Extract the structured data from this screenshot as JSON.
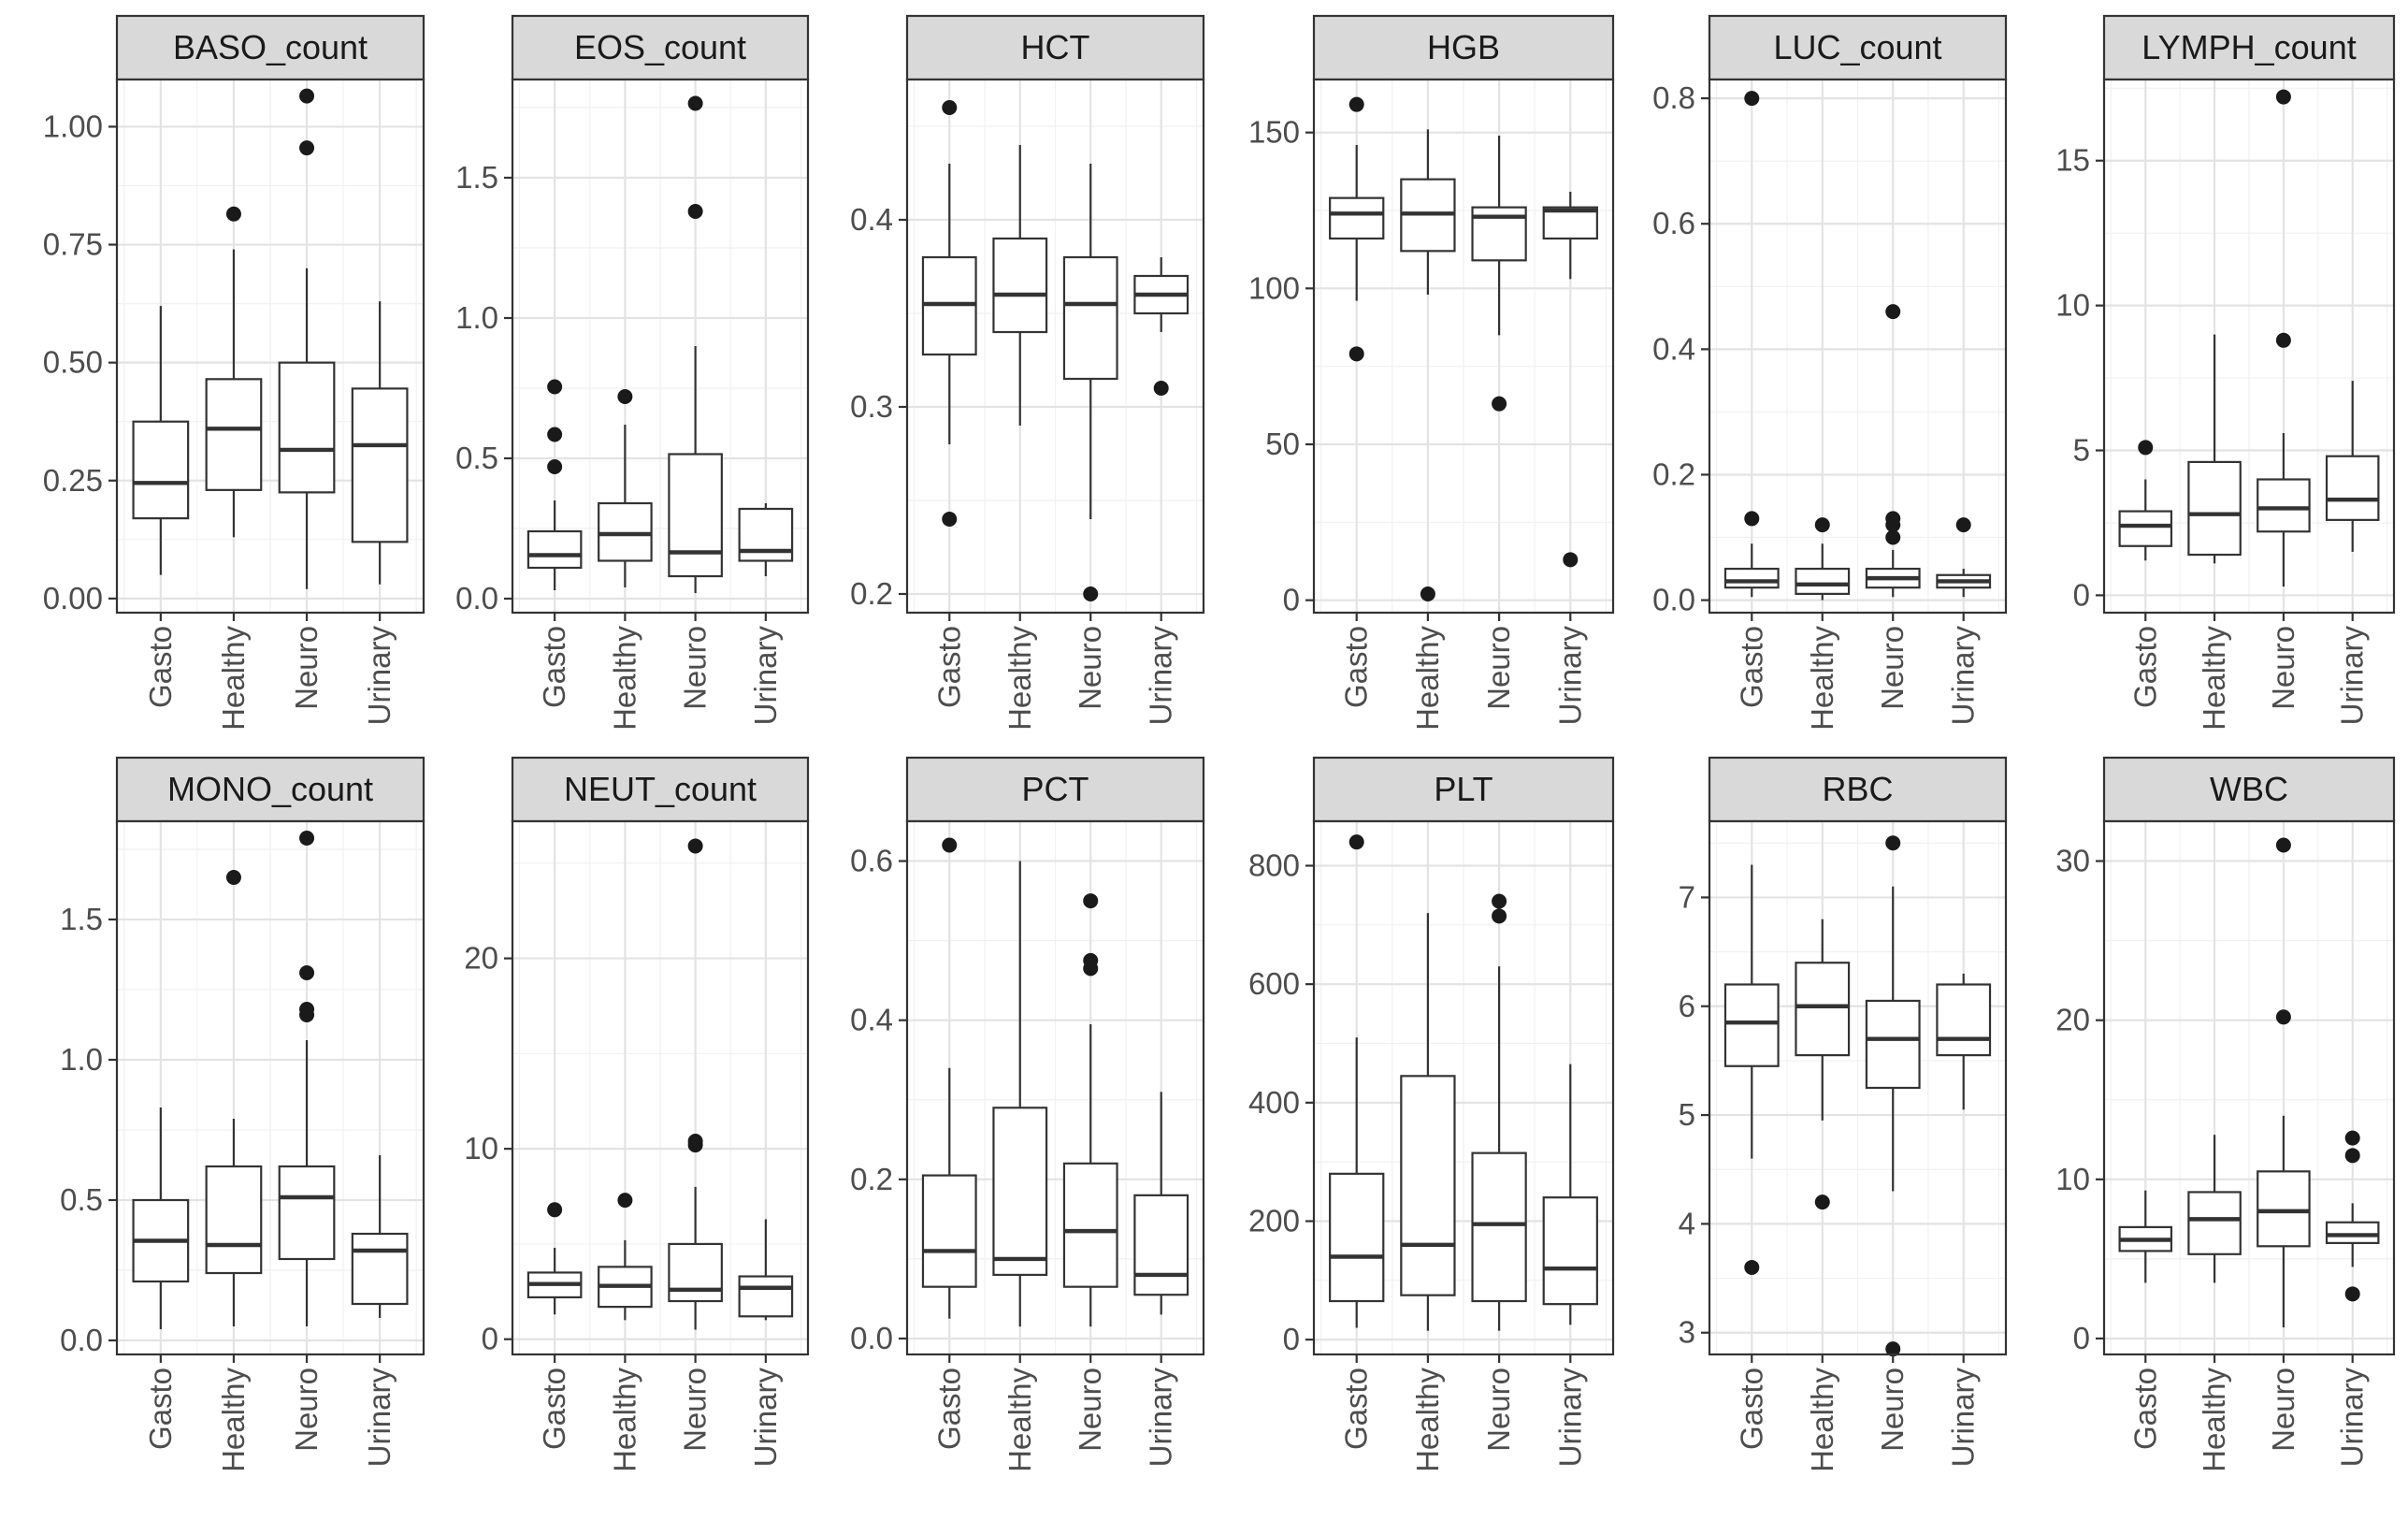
{
  "chart_data": [
    {
      "type": "box",
      "title": "BASO_count",
      "categories": [
        "Gasto",
        "Healthy",
        "Neuro",
        "Urinary"
      ],
      "ylim": [
        -0.03,
        1.1
      ],
      "yticks": [
        0.0,
        0.25,
        0.5,
        0.75,
        1.0
      ],
      "ytick_labels": [
        "0.00",
        "0.25",
        "0.50",
        "0.75",
        "1.00"
      ],
      "boxes": [
        {
          "min": 0.05,
          "q1": 0.17,
          "median": 0.245,
          "q3": 0.375,
          "max": 0.62,
          "outliers": []
        },
        {
          "min": 0.13,
          "q1": 0.23,
          "median": 0.36,
          "q3": 0.465,
          "max": 0.74,
          "outliers": [
            0.815
          ]
        },
        {
          "min": 0.02,
          "q1": 0.225,
          "median": 0.315,
          "q3": 0.5,
          "max": 0.7,
          "outliers": [
            0.955,
            1.065
          ]
        },
        {
          "min": 0.03,
          "q1": 0.12,
          "median": 0.325,
          "q3": 0.445,
          "max": 0.63,
          "outliers": []
        }
      ]
    },
    {
      "type": "box",
      "title": "EOS_count",
      "categories": [
        "Gasto",
        "Healthy",
        "Neuro",
        "Urinary"
      ],
      "ylim": [
        -0.05,
        1.85
      ],
      "yticks": [
        0.0,
        0.5,
        1.0,
        1.5
      ],
      "ytick_labels": [
        "0.0",
        "0.5",
        "1.0",
        "1.5"
      ],
      "boxes": [
        {
          "min": 0.03,
          "q1": 0.11,
          "median": 0.155,
          "q3": 0.24,
          "max": 0.35,
          "outliers": [
            0.47,
            0.585,
            0.755
          ]
        },
        {
          "min": 0.04,
          "q1": 0.135,
          "median": 0.23,
          "q3": 0.34,
          "max": 0.62,
          "outliers": [
            0.72
          ]
        },
        {
          "min": 0.02,
          "q1": 0.08,
          "median": 0.165,
          "q3": 0.515,
          "max": 0.9,
          "outliers": [
            1.38,
            1.765
          ]
        },
        {
          "min": 0.08,
          "q1": 0.135,
          "median": 0.17,
          "q3": 0.32,
          "max": 0.34,
          "outliers": []
        }
      ]
    },
    {
      "type": "box",
      "title": "HCT",
      "categories": [
        "Gasto",
        "Healthy",
        "Neuro",
        "Urinary"
      ],
      "ylim": [
        0.19,
        0.475
      ],
      "yticks": [
        0.2,
        0.3,
        0.4
      ],
      "ytick_labels": [
        "0.2",
        "0.3",
        "0.4"
      ],
      "boxes": [
        {
          "min": 0.28,
          "q1": 0.328,
          "median": 0.355,
          "q3": 0.38,
          "max": 0.43,
          "outliers": [
            0.24,
            0.46
          ]
        },
        {
          "min": 0.29,
          "q1": 0.34,
          "median": 0.36,
          "q3": 0.39,
          "max": 0.44,
          "outliers": []
        },
        {
          "min": 0.24,
          "q1": 0.315,
          "median": 0.355,
          "q3": 0.38,
          "max": 0.43,
          "outliers": [
            0.2
          ]
        },
        {
          "min": 0.34,
          "q1": 0.35,
          "median": 0.36,
          "q3": 0.37,
          "max": 0.38,
          "outliers": [
            0.31
          ]
        }
      ]
    },
    {
      "type": "box",
      "title": "HGB",
      "categories": [
        "Gasto",
        "Healthy",
        "Neuro",
        "Urinary"
      ],
      "ylim": [
        -4,
        167
      ],
      "yticks": [
        0,
        50,
        100,
        150
      ],
      "ytick_labels": [
        "0",
        "50",
        "100",
        "150"
      ],
      "boxes": [
        {
          "min": 96,
          "q1": 116,
          "median": 124,
          "q3": 129,
          "max": 146,
          "outliers": [
            79,
            159
          ]
        },
        {
          "min": 98,
          "q1": 112,
          "median": 124,
          "q3": 135,
          "max": 151,
          "outliers": [
            2
          ]
        },
        {
          "min": 85,
          "q1": 109,
          "median": 123,
          "q3": 126,
          "max": 149,
          "outliers": [
            63
          ]
        },
        {
          "min": 103,
          "q1": 116,
          "median": 125,
          "q3": 126,
          "max": 131,
          "outliers": [
            13
          ]
        }
      ]
    },
    {
      "type": "box",
      "title": "LUC_count",
      "categories": [
        "Gasto",
        "Healthy",
        "Neuro",
        "Urinary"
      ],
      "ylim": [
        -0.02,
        0.83
      ],
      "yticks": [
        0.0,
        0.2,
        0.4,
        0.6,
        0.8
      ],
      "ytick_labels": [
        "0.0",
        "0.2",
        "0.4",
        "0.6",
        "0.8"
      ],
      "boxes": [
        {
          "min": 0.005,
          "q1": 0.02,
          "median": 0.03,
          "q3": 0.05,
          "max": 0.09,
          "outliers": [
            0.13,
            0.8
          ]
        },
        {
          "min": 0.0,
          "q1": 0.01,
          "median": 0.025,
          "q3": 0.05,
          "max": 0.09,
          "outliers": [
            0.12
          ]
        },
        {
          "min": 0.005,
          "q1": 0.02,
          "median": 0.035,
          "q3": 0.05,
          "max": 0.08,
          "outliers": [
            0.1,
            0.12,
            0.13,
            0.46
          ]
        },
        {
          "min": 0.005,
          "q1": 0.02,
          "median": 0.03,
          "q3": 0.04,
          "max": 0.05,
          "outliers": [
            0.12
          ]
        }
      ]
    },
    {
      "type": "box",
      "title": "LYMPH_count",
      "categories": [
        "Gasto",
        "Healthy",
        "Neuro",
        "Urinary"
      ],
      "ylim": [
        -0.6,
        17.8
      ],
      "yticks": [
        0,
        5,
        10,
        15
      ],
      "ytick_labels": [
        "0",
        "5",
        "10",
        "15"
      ],
      "boxes": [
        {
          "min": 1.2,
          "q1": 1.7,
          "median": 2.4,
          "q3": 2.9,
          "max": 4.0,
          "outliers": [
            5.1
          ]
        },
        {
          "min": 1.1,
          "q1": 1.4,
          "median": 2.8,
          "q3": 4.6,
          "max": 9.0,
          "outliers": []
        },
        {
          "min": 0.3,
          "q1": 2.2,
          "median": 3.0,
          "q3": 4.0,
          "max": 5.6,
          "outliers": [
            8.8,
            17.2
          ]
        },
        {
          "min": 1.5,
          "q1": 2.6,
          "median": 3.3,
          "q3": 4.8,
          "max": 7.4,
          "outliers": []
        }
      ]
    },
    {
      "type": "box",
      "title": "MONO_count",
      "categories": [
        "Gasto",
        "Healthy",
        "Neuro",
        "Urinary"
      ],
      "ylim": [
        -0.05,
        1.85
      ],
      "yticks": [
        0.0,
        0.5,
        1.0,
        1.5
      ],
      "ytick_labels": [
        "0.0",
        "0.5",
        "1.0",
        "1.5"
      ],
      "boxes": [
        {
          "min": 0.04,
          "q1": 0.21,
          "median": 0.355,
          "q3": 0.5,
          "max": 0.83,
          "outliers": []
        },
        {
          "min": 0.05,
          "q1": 0.24,
          "median": 0.34,
          "q3": 0.62,
          "max": 0.79,
          "outliers": [
            1.65
          ]
        },
        {
          "min": 0.05,
          "q1": 0.29,
          "median": 0.51,
          "q3": 0.62,
          "max": 1.07,
          "outliers": [
            1.16,
            1.18,
            1.31,
            1.79
          ]
        },
        {
          "min": 0.08,
          "q1": 0.13,
          "median": 0.32,
          "q3": 0.38,
          "max": 0.66,
          "outliers": []
        }
      ]
    },
    {
      "type": "box",
      "title": "NEUT_count",
      "categories": [
        "Gasto",
        "Healthy",
        "Neuro",
        "Urinary"
      ],
      "ylim": [
        -0.8,
        27.2
      ],
      "yticks": [
        0,
        10,
        20
      ],
      "ytick_labels": [
        "0",
        "10",
        "20"
      ],
      "boxes": [
        {
          "min": 1.3,
          "q1": 2.2,
          "median": 2.9,
          "q3": 3.5,
          "max": 4.8,
          "outliers": [
            6.8
          ]
        },
        {
          "min": 1.0,
          "q1": 1.7,
          "median": 2.8,
          "q3": 3.8,
          "max": 5.2,
          "outliers": [
            7.3
          ]
        },
        {
          "min": 0.5,
          "q1": 2.0,
          "median": 2.6,
          "q3": 5.0,
          "max": 8.0,
          "outliers": [
            10.2,
            10.4,
            25.9
          ]
        },
        {
          "min": 1.0,
          "q1": 1.2,
          "median": 2.7,
          "q3": 3.3,
          "max": 6.3,
          "outliers": []
        }
      ]
    },
    {
      "type": "box",
      "title": "PCT",
      "categories": [
        "Gasto",
        "Healthy",
        "Neuro",
        "Urinary"
      ],
      "ylim": [
        -0.02,
        0.65
      ],
      "yticks": [
        0.0,
        0.2,
        0.4,
        0.6
      ],
      "ytick_labels": [
        "0.0",
        "0.2",
        "0.4",
        "0.6"
      ],
      "boxes": [
        {
          "min": 0.025,
          "q1": 0.065,
          "median": 0.11,
          "q3": 0.205,
          "max": 0.34,
          "outliers": [
            0.62
          ]
        },
        {
          "min": 0.015,
          "q1": 0.08,
          "median": 0.1,
          "q3": 0.29,
          "max": 0.6,
          "outliers": []
        },
        {
          "min": 0.015,
          "q1": 0.065,
          "median": 0.135,
          "q3": 0.22,
          "max": 0.395,
          "outliers": [
            0.465,
            0.475,
            0.55
          ]
        },
        {
          "min": 0.03,
          "q1": 0.055,
          "median": 0.08,
          "q3": 0.18,
          "max": 0.31,
          "outliers": []
        }
      ]
    },
    {
      "type": "box",
      "title": "PLT",
      "categories": [
        "Gasto",
        "Healthy",
        "Neuro",
        "Urinary"
      ],
      "ylim": [
        -25,
        875
      ],
      "yticks": [
        0,
        200,
        400,
        600,
        800
      ],
      "ytick_labels": [
        "0",
        "200",
        "400",
        "600",
        "800"
      ],
      "boxes": [
        {
          "min": 20,
          "q1": 65,
          "median": 140,
          "q3": 280,
          "max": 510,
          "outliers": [
            840
          ]
        },
        {
          "min": 15,
          "q1": 75,
          "median": 160,
          "q3": 445,
          "max": 720,
          "outliers": []
        },
        {
          "min": 15,
          "q1": 65,
          "median": 195,
          "q3": 315,
          "max": 630,
          "outliers": [
            715,
            740
          ]
        },
        {
          "min": 25,
          "q1": 60,
          "median": 120,
          "q3": 240,
          "max": 465,
          "outliers": []
        }
      ]
    },
    {
      "type": "box",
      "title": "RBC",
      "categories": [
        "Gasto",
        "Healthy",
        "Neuro",
        "Urinary"
      ],
      "ylim": [
        2.8,
        7.7
      ],
      "yticks": [
        3,
        4,
        5,
        6,
        7
      ],
      "ytick_labels": [
        "3",
        "4",
        "5",
        "6",
        "7"
      ],
      "boxes": [
        {
          "min": 4.6,
          "q1": 5.45,
          "median": 5.85,
          "q3": 6.2,
          "max": 7.3,
          "outliers": [
            3.6
          ]
        },
        {
          "min": 4.95,
          "q1": 5.55,
          "median": 6.0,
          "q3": 6.4,
          "max": 6.8,
          "outliers": [
            4.2
          ]
        },
        {
          "min": 4.3,
          "q1": 5.25,
          "median": 5.7,
          "q3": 6.05,
          "max": 7.1,
          "outliers": [
            2.85,
            7.5
          ]
        },
        {
          "min": 5.05,
          "q1": 5.55,
          "median": 5.7,
          "q3": 6.2,
          "max": 6.3,
          "outliers": []
        }
      ]
    },
    {
      "type": "box",
      "title": "WBC",
      "categories": [
        "Gasto",
        "Healthy",
        "Neuro",
        "Urinary"
      ],
      "ylim": [
        -1,
        32.5
      ],
      "yticks": [
        0,
        10,
        20,
        30
      ],
      "ytick_labels": [
        "0",
        "10",
        "20",
        "30"
      ],
      "boxes": [
        {
          "min": 3.5,
          "q1": 5.5,
          "median": 6.2,
          "q3": 7.0,
          "max": 9.3,
          "outliers": []
        },
        {
          "min": 3.5,
          "q1": 5.3,
          "median": 7.5,
          "q3": 9.2,
          "max": 12.8,
          "outliers": []
        },
        {
          "min": 0.7,
          "q1": 5.8,
          "median": 8.0,
          "q3": 10.5,
          "max": 14.0,
          "outliers": [
            20.2,
            31.0
          ]
        },
        {
          "min": 4.5,
          "q1": 6.0,
          "median": 6.5,
          "q3": 7.3,
          "max": 8.5,
          "outliers": [
            2.8,
            11.5,
            12.6
          ]
        }
      ]
    }
  ]
}
